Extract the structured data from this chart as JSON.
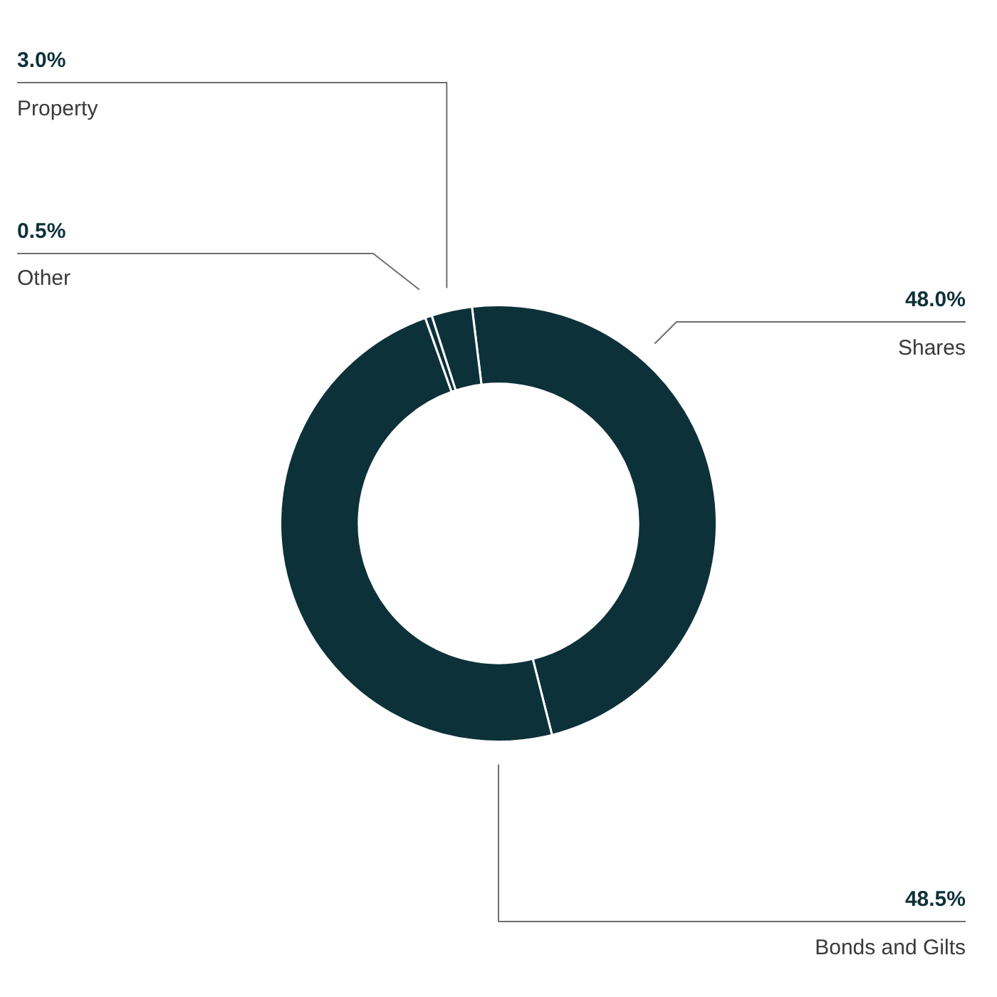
{
  "chart_data": {
    "type": "donut",
    "categories": [
      "Shares",
      "Bonds and Gilts",
      "Other",
      "Property"
    ],
    "values": [
      48.0,
      48.5,
      0.5,
      3.0
    ],
    "colors": [
      "#0d3139",
      "#0d3139",
      "#0d3139",
      "#0d3139"
    ],
    "value_labels": [
      "48.0%",
      "48.5%",
      "0.5%",
      "3.0%"
    ]
  }
}
